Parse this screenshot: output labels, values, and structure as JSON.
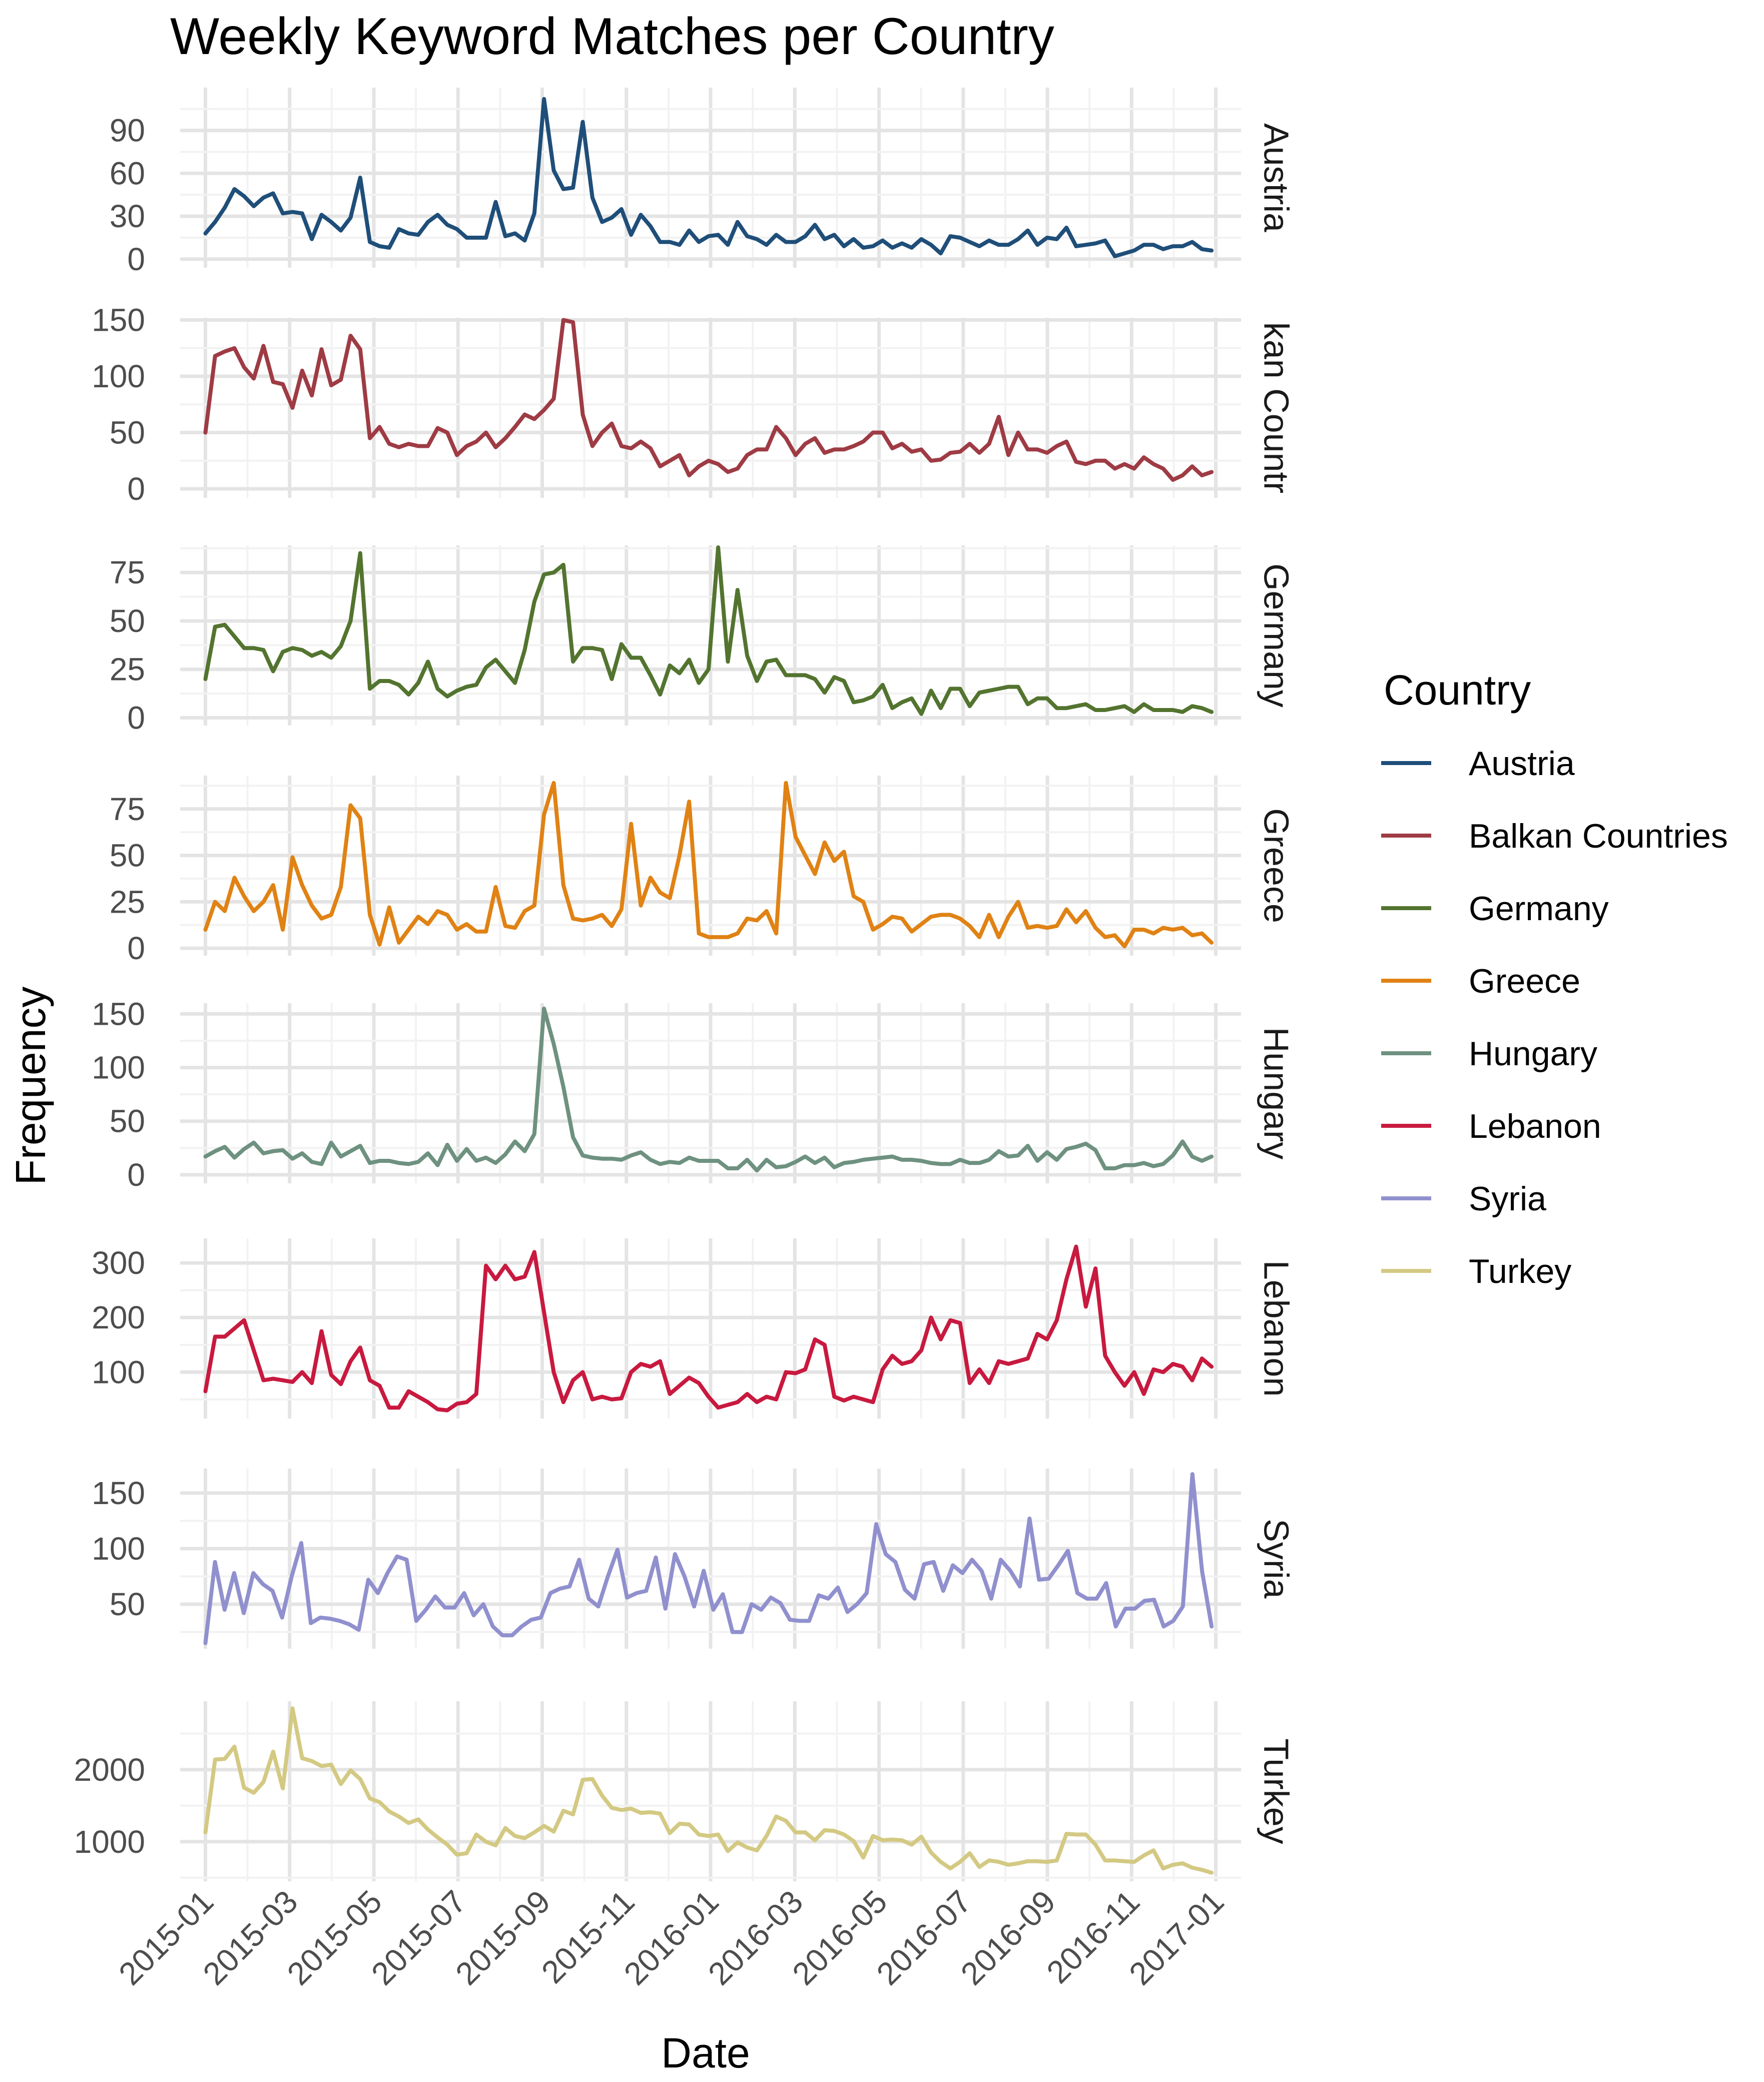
{
  "chart_data": {
    "type": "line",
    "title": "Weekly Keyword Matches per Country",
    "xlabel": "Date",
    "ylabel": "Frequency",
    "legend_title": "Country",
    "legend_position": "right",
    "x_tick_labels": [
      "2015-01",
      "2015-03",
      "2015-05",
      "2015-07",
      "2015-09",
      "2015-11",
      "2016-01",
      "2016-03",
      "2016-05",
      "2016-07",
      "2016-09",
      "2016-11",
      "2017-01"
    ],
    "x_range_months": [
      -0.6,
      24.6
    ],
    "grid": true,
    "panels": [
      {
        "name": "Austria",
        "strip_label": "Austria",
        "color": "#1F4E79",
        "y_ticks": [
          0,
          30,
          60,
          90
        ],
        "y_labels": [
          "0",
          "30",
          "60",
          "90"
        ],
        "ylim": [
          -6,
          120
        ],
        "values": [
          18,
          26,
          36,
          49,
          44,
          37,
          43,
          46,
          32,
          33,
          32,
          14,
          31,
          26,
          20,
          29,
          57,
          12,
          9,
          8,
          21,
          18,
          17,
          26,
          31,
          24,
          21,
          15,
          15,
          15,
          40,
          16,
          18,
          13,
          32,
          112,
          62,
          49,
          50,
          96,
          43,
          26,
          29,
          35,
          17,
          31,
          23,
          12,
          12,
          10,
          20,
          12,
          16,
          17,
          10,
          26,
          16,
          14,
          10,
          17,
          12,
          12,
          16,
          24,
          14,
          17,
          9,
          14,
          8,
          9,
          13,
          8,
          11,
          8,
          14,
          10,
          4,
          16,
          15,
          12,
          9,
          13,
          10,
          10,
          14,
          20,
          10,
          15,
          14,
          22,
          9,
          10,
          11,
          13,
          2,
          4,
          6,
          10,
          10,
          7,
          9,
          9,
          12,
          7,
          6
        ]
      },
      {
        "name": "Balkan Countries",
        "strip_label": "kan Countr",
        "color": "#9E3B44",
        "y_ticks": [
          0,
          50,
          100,
          150
        ],
        "y_labels": [
          "0",
          "50",
          "100",
          "150"
        ],
        "ylim": [
          -8,
          152
        ],
        "values": [
          50,
          118,
          122,
          125,
          108,
          98,
          127,
          95,
          93,
          72,
          105,
          83,
          124,
          92,
          97,
          136,
          124,
          45,
          55,
          40,
          37,
          40,
          38,
          38,
          54,
          50,
          30,
          38,
          42,
          50,
          37,
          45,
          55,
          66,
          62,
          70,
          80,
          150,
          148,
          66,
          38,
          50,
          58,
          38,
          36,
          42,
          36,
          20,
          25,
          30,
          12,
          20,
          25,
          22,
          15,
          18,
          30,
          35,
          35,
          55,
          45,
          30,
          40,
          45,
          32,
          35,
          35,
          38,
          42,
          50,
          50,
          36,
          40,
          33,
          35,
          25,
          26,
          32,
          33,
          40,
          32,
          40,
          64,
          30,
          50,
          35,
          35,
          32,
          38,
          42,
          24,
          22,
          25,
          25,
          18,
          22,
          18,
          28,
          22,
          18,
          8,
          12,
          20,
          12,
          15
        ]
      },
      {
        "name": "Germany",
        "strip_label": "Germany",
        "color": "#53742F",
        "y_ticks": [
          0,
          25,
          50,
          75
        ],
        "y_labels": [
          "0",
          "25",
          "50",
          "75"
        ],
        "ylim": [
          -4,
          89
        ],
        "values": [
          20,
          47,
          48,
          42,
          36,
          36,
          35,
          24,
          34,
          36,
          35,
          32,
          34,
          31,
          37,
          50,
          85,
          15,
          19,
          19,
          17,
          12,
          18,
          29,
          15,
          11,
          14,
          16,
          17,
          26,
          30,
          24,
          18,
          35,
          60,
          74,
          75,
          79,
          29,
          36,
          36,
          35,
          20,
          38,
          31,
          31,
          22,
          12,
          27,
          23,
          30,
          18,
          25,
          88,
          29,
          66,
          32,
          19,
          29,
          30,
          22,
          22,
          22,
          20,
          13,
          21,
          19,
          8,
          9,
          11,
          17,
          5,
          8,
          10,
          2,
          14,
          5,
          15,
          15,
          6,
          13,
          14,
          15,
          16,
          16,
          7,
          10,
          10,
          5,
          5,
          6,
          7,
          4,
          4,
          5,
          6,
          3,
          7,
          4,
          4,
          4,
          3,
          6,
          5,
          3
        ]
      },
      {
        "name": "Greece",
        "strip_label": "Greece",
        "color": "#E08214",
        "y_ticks": [
          0,
          25,
          50,
          75
        ],
        "y_labels": [
          "0",
          "25",
          "50",
          "75"
        ],
        "ylim": [
          -4,
          93
        ],
        "values": [
          10,
          25,
          20,
          38,
          28,
          20,
          25,
          34,
          10,
          49,
          34,
          23,
          16,
          18,
          33,
          77,
          70,
          18,
          2,
          22,
          3,
          10,
          17,
          13,
          20,
          18,
          10,
          13,
          9,
          9,
          33,
          12,
          11,
          20,
          23,
          72,
          89,
          34,
          16,
          15,
          16,
          18,
          12,
          21,
          67,
          23,
          38,
          30,
          27,
          50,
          79,
          8,
          6,
          6,
          6,
          8,
          16,
          15,
          20,
          8,
          89,
          60,
          50,
          40,
          57,
          47,
          52,
          28,
          25,
          10,
          13,
          17,
          16,
          9,
          13,
          17,
          18,
          18,
          16,
          12,
          6,
          18,
          6,
          17,
          25,
          11,
          12,
          11,
          12,
          21,
          14,
          20,
          11,
          6,
          7,
          1,
          10,
          10,
          8,
          11,
          10,
          11,
          7,
          8,
          3
        ]
      },
      {
        "name": "Hungary",
        "strip_label": "Hungary",
        "color": "#6E9180",
        "y_ticks": [
          0,
          50,
          100,
          150
        ],
        "y_labels": [
          "0",
          "50",
          "100",
          "150"
        ],
        "ylim": [
          -8,
          160
        ],
        "values": [
          17,
          22,
          26,
          16,
          24,
          30,
          20,
          22,
          23,
          15,
          20,
          12,
          10,
          30,
          17,
          22,
          27,
          11,
          13,
          13,
          11,
          10,
          12,
          20,
          9,
          28,
          13,
          24,
          13,
          16,
          11,
          19,
          31,
          22,
          38,
          155,
          122,
          82,
          35,
          18,
          16,
          15,
          15,
          14,
          18,
          21,
          14,
          10,
          12,
          11,
          16,
          13,
          13,
          13,
          6,
          6,
          14,
          4,
          14,
          7,
          8,
          12,
          17,
          11,
          16,
          7,
          11,
          12,
          14,
          15,
          16,
          17,
          14,
          14,
          13,
          11,
          10,
          10,
          14,
          11,
          11,
          14,
          22,
          17,
          18,
          27,
          13,
          21,
          14,
          24,
          26,
          29,
          23,
          6,
          6,
          9,
          9,
          11,
          8,
          10,
          18,
          31,
          17,
          13,
          17
        ]
      },
      {
        "name": "Lebanon",
        "strip_label": "Lebanon",
        "color": "#C8193F",
        "y_ticks": [
          100,
          200,
          300
        ],
        "y_labels": [
          "100",
          "200",
          "300"
        ],
        "ylim": [
          15,
          345
        ],
        "values": [
          65,
          165,
          165,
          180,
          195,
          140,
          85,
          88,
          85,
          82,
          100,
          80,
          175,
          95,
          78,
          120,
          145,
          85,
          75,
          35,
          35,
          65,
          55,
          45,
          32,
          30,
          42,
          45,
          60,
          295,
          270,
          295,
          270,
          275,
          320,
          210,
          100,
          45,
          85,
          100,
          50,
          55,
          50,
          52,
          100,
          115,
          110,
          120,
          60,
          75,
          90,
          80,
          55,
          35,
          40,
          45,
          60,
          45,
          55,
          50,
          100,
          98,
          105,
          160,
          150,
          55,
          48,
          55,
          50,
          45,
          105,
          130,
          115,
          120,
          140,
          200,
          160,
          195,
          190,
          80,
          105,
          80,
          120,
          115,
          120,
          125,
          170,
          160,
          195,
          270,
          330,
          220,
          290,
          130,
          100,
          75,
          100,
          60,
          105,
          100,
          115,
          110,
          85,
          125,
          110
        ]
      },
      {
        "name": "Syria",
        "strip_label": "Syria",
        "color": "#9190CE",
        "y_ticks": [
          50,
          100,
          150
        ],
        "y_labels": [
          "50",
          "100",
          "150"
        ],
        "ylim": [
          10,
          172
        ],
        "values": [
          15,
          88,
          45,
          78,
          42,
          78,
          68,
          62,
          38,
          75,
          105,
          33,
          38,
          37,
          35,
          32,
          27,
          72,
          60,
          78,
          93,
          90,
          35,
          45,
          57,
          47,
          47,
          60,
          40,
          50,
          30,
          22,
          22,
          30,
          36,
          38,
          60,
          64,
          66,
          90,
          55,
          48,
          75,
          99,
          56,
          60,
          62,
          92,
          46,
          95,
          75,
          48,
          80,
          45,
          59,
          25,
          25,
          50,
          45,
          56,
          51,
          36,
          35,
          35,
          58,
          55,
          65,
          43,
          50,
          60,
          122,
          95,
          88,
          63,
          55,
          86,
          88,
          62,
          85,
          78,
          90,
          80,
          55,
          90,
          80,
          66,
          127,
          72,
          73,
          85,
          98,
          60,
          55,
          55,
          69,
          30,
          46,
          46,
          53,
          54,
          30,
          35,
          48,
          167,
          80,
          30
        ]
      },
      {
        "name": "Turkey",
        "strip_label": "Turkey",
        "color": "#D3C983",
        "y_ticks": [
          1000,
          2000
        ],
        "y_labels": [
          "1000",
          "2000"
        ],
        "ylim": [
          450,
          2950
        ],
        "values": [
          1130,
          2140,
          2150,
          2320,
          1750,
          1680,
          1830,
          2250,
          1740,
          2850,
          2160,
          2120,
          2050,
          2070,
          1800,
          1990,
          1870,
          1600,
          1550,
          1420,
          1350,
          1260,
          1310,
          1170,
          1060,
          960,
          820,
          840,
          1100,
          1000,
          950,
          1190,
          1080,
          1050,
          1130,
          1220,
          1140,
          1430,
          1380,
          1860,
          1870,
          1640,
          1470,
          1440,
          1460,
          1400,
          1410,
          1390,
          1120,
          1250,
          1240,
          1100,
          1080,
          1100,
          870,
          990,
          920,
          880,
          1080,
          1350,
          1290,
          1130,
          1130,
          1020,
          1160,
          1150,
          1100,
          1010,
          780,
          1080,
          1020,
          1030,
          1020,
          960,
          1070,
          850,
          720,
          630,
          720,
          840,
          650,
          740,
          720,
          680,
          700,
          730,
          730,
          720,
          740,
          1110,
          1100,
          1100,
          960,
          740,
          740,
          730,
          720,
          810,
          880,
          630,
          680,
          700,
          640,
          610,
          570
        ]
      }
    ]
  }
}
